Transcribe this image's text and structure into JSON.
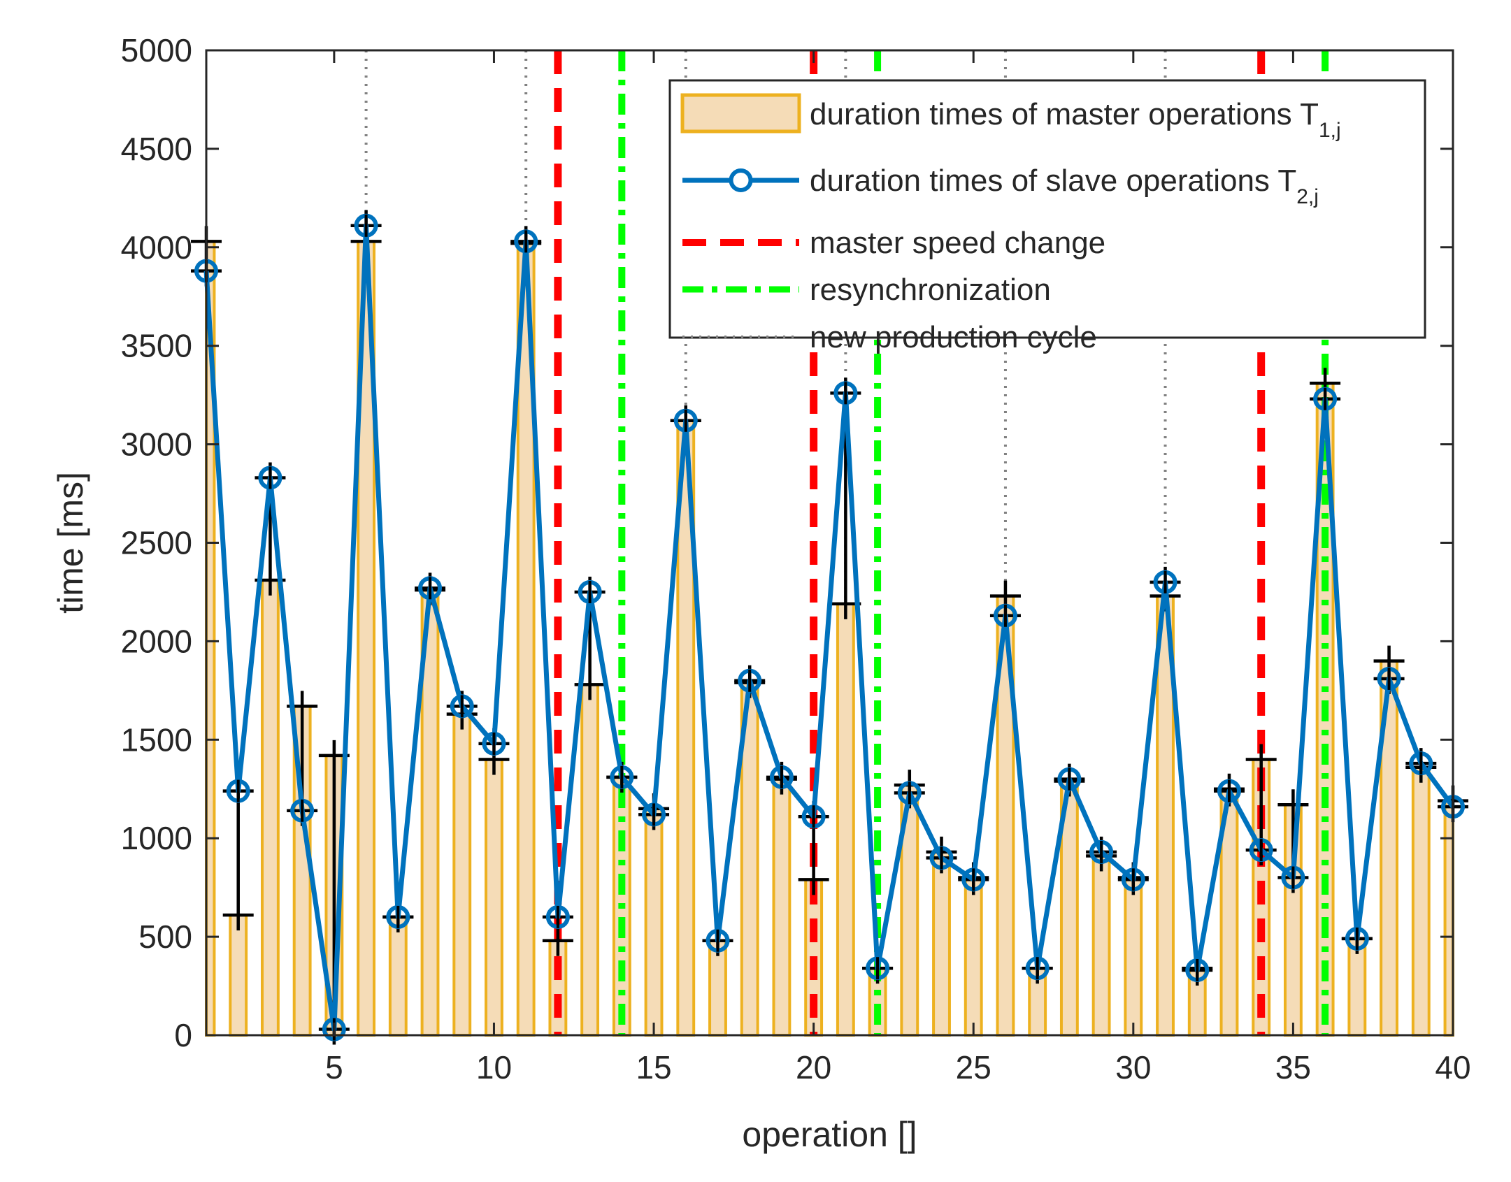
{
  "chart_data": {
    "type": "bar",
    "title": "",
    "xlabel": "operation []",
    "ylabel": "time [ms]",
    "xlim": [
      1,
      40
    ],
    "ylim": [
      0,
      5000
    ],
    "x_ticks": [
      5,
      10,
      15,
      20,
      25,
      30,
      35,
      40
    ],
    "y_ticks": [
      0,
      500,
      1000,
      1500,
      2000,
      2500,
      3000,
      3500,
      4000,
      4500,
      5000
    ],
    "operations": [
      1,
      2,
      3,
      4,
      5,
      6,
      7,
      8,
      9,
      10,
      11,
      12,
      13,
      14,
      15,
      16,
      17,
      18,
      19,
      20,
      21,
      22,
      23,
      24,
      25,
      26,
      27,
      28,
      29,
      30,
      31,
      32,
      33,
      34,
      35,
      36,
      37,
      38,
      39,
      40
    ],
    "master_durations": [
      4030,
      610,
      2310,
      1670,
      1420,
      4030,
      600,
      2260,
      1630,
      1400,
      4020,
      480,
      1780,
      1310,
      1150,
      3120,
      480,
      1790,
      1300,
      790,
      2190,
      340,
      1270,
      930,
      800,
      2230,
      340,
      1290,
      910,
      800,
      2230,
      340,
      1250,
      1400,
      1170,
      3310,
      490,
      1900,
      1360,
      1190
    ],
    "slave_durations": [
      3880,
      1240,
      2830,
      1140,
      30,
      4110,
      600,
      2270,
      1670,
      1480,
      4030,
      600,
      2250,
      1310,
      1120,
      3120,
      480,
      1800,
      1310,
      1110,
      3260,
      340,
      1230,
      900,
      790,
      2130,
      340,
      1300,
      930,
      790,
      2300,
      330,
      1240,
      940,
      800,
      3230,
      490,
      1810,
      1380,
      1160
    ],
    "master_speed_change_ops": [
      12,
      20,
      34
    ],
    "resynchronization_ops": [
      14,
      22,
      36
    ],
    "new_production_cycle_ops": [
      6,
      11,
      16,
      21,
      26,
      31
    ],
    "series": [
      {
        "name": "duration times of master operations",
        "sub": "1,j",
        "values_key": "master_durations",
        "kind": "bar"
      },
      {
        "name": "duration times of slave operations",
        "sub": "2,j",
        "values_key": "slave_durations",
        "kind": "line-marker"
      }
    ],
    "legend": {
      "placement": "top-right",
      "entries": [
        {
          "label": "duration times of master operations T",
          "sub": "1,j"
        },
        {
          "label": "duration times of slave operations T",
          "sub": "2,j"
        },
        {
          "label": "master speed change",
          "sub": ""
        },
        {
          "label": "resynchronization",
          "sub": ""
        },
        {
          "label": "new production cycle",
          "sub": ""
        }
      ]
    },
    "colors": {
      "bar_fill": "#f5dcb7",
      "bar_edge": "#edb120",
      "slave_line": "#0072bd",
      "speed_change": "#ff0000",
      "resync": "#00ff00",
      "cycle": "#808080",
      "error_bar": "#000000"
    }
  }
}
